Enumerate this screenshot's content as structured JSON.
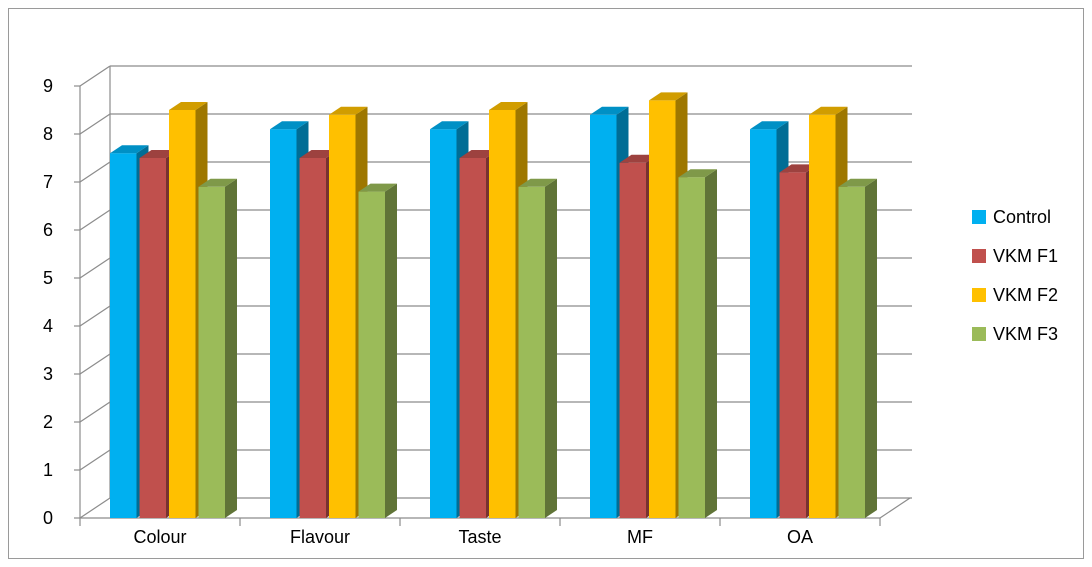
{
  "chart_data": {
    "type": "bar",
    "title": "",
    "xlabel": "",
    "ylabel": "",
    "categories": [
      "Colour",
      "Flavour",
      "Taste",
      "MF",
      "OA"
    ],
    "ylim": [
      0,
      9
    ],
    "yticks": [
      0,
      1,
      2,
      3,
      4,
      5,
      6,
      7,
      8,
      9
    ],
    "grid": true,
    "style": "3d-clustered-column",
    "legend_position": "right",
    "series": [
      {
        "name": "Control",
        "color": "#00b0f0",
        "values": [
          7.6,
          8.1,
          8.1,
          8.4,
          8.1
        ]
      },
      {
        "name": "VKM F1",
        "color": "#c0504d",
        "values": [
          7.5,
          7.5,
          7.5,
          7.4,
          7.2
        ]
      },
      {
        "name": "VKM F2",
        "color": "#ffc000",
        "values": [
          8.5,
          8.4,
          8.5,
          8.7,
          8.4
        ]
      },
      {
        "name": "VKM F3",
        "color": "#9bbb59",
        "values": [
          6.9,
          6.8,
          6.9,
          7.1,
          6.9
        ]
      }
    ]
  }
}
